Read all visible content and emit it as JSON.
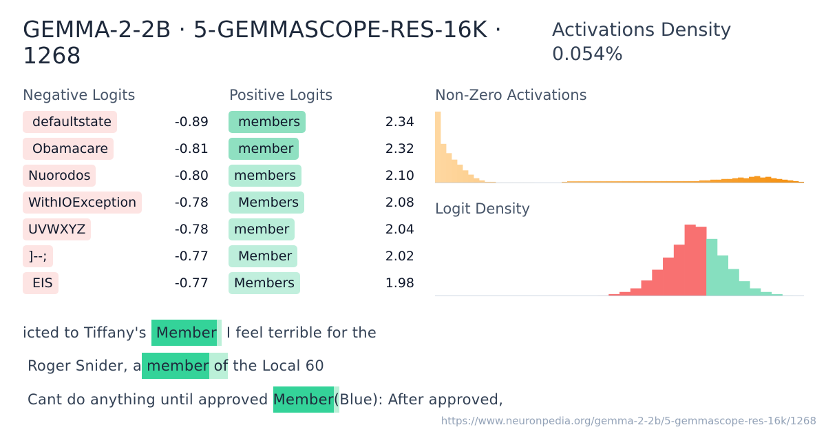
{
  "title": "GEMMA-2-2B · 5-GEMMASCOPE-RES-16K · 1268",
  "activations_density": {
    "label": "Activations Density",
    "value": "0.054%"
  },
  "negative_logits": {
    "label": "Negative Logits",
    "items": [
      {
        "token": " defaultstate",
        "value": "-0.89"
      },
      {
        "token": " Obamacare",
        "value": "-0.81"
      },
      {
        "token": "Nuorodos",
        "value": "-0.80"
      },
      {
        "token": "WithIOException",
        "value": "-0.78"
      },
      {
        "token": "UVWXYZ",
        "value": "-0.78"
      },
      {
        "token": "]--;",
        "value": "-0.77"
      },
      {
        "token": " EIS",
        "value": "-0.77"
      }
    ]
  },
  "positive_logits": {
    "label": "Positive Logits",
    "items": [
      {
        "token": " members",
        "value": "2.34",
        "color": "#8ee0c0"
      },
      {
        "token": " member",
        "value": "2.32",
        "color": "#8fe0c1"
      },
      {
        "token": "members",
        "value": "2.10",
        "color": "#b4ecd6"
      },
      {
        "token": " Members",
        "value": "2.08",
        "color": "#b6ecd7"
      },
      {
        "token": "member",
        "value": "2.04",
        "color": "#baeed9"
      },
      {
        "token": " Member",
        "value": "2.02",
        "color": "#bdeedb"
      },
      {
        "token": "Members",
        "value": "1.98",
        "color": "#c1efdd"
      }
    ]
  },
  "nonzero_activations": {
    "label": "Non-Zero Activations",
    "bars": [
      100,
      55,
      42,
      33,
      26,
      18,
      12,
      7,
      4,
      2,
      2,
      1,
      1,
      1,
      1,
      1,
      1,
      1,
      0.5,
      0.5,
      0.5,
      0.5,
      0.5,
      2,
      3,
      3,
      3,
      3,
      3,
      3,
      3,
      3,
      3,
      3,
      3,
      3,
      3,
      3,
      3,
      3,
      3,
      3,
      3,
      3,
      3,
      3,
      3,
      3,
      4,
      4,
      5,
      5,
      6,
      6,
      7,
      8,
      7,
      9,
      10,
      8,
      9,
      7,
      6,
      5,
      4,
      3,
      2
    ],
    "color_start": "#fed7a0",
    "color_end": "#f5900e"
  },
  "logit_density": {
    "label": "Logit Density",
    "bars": [
      0,
      0,
      0,
      0,
      0,
      0,
      0,
      0,
      0,
      0,
      0,
      0,
      0,
      0,
      0.5,
      1,
      3,
      6,
      11,
      22,
      37,
      54,
      72,
      100,
      97,
      80,
      57,
      38,
      21,
      11,
      6,
      3,
      1,
      0.5
    ],
    "split_index": 25,
    "neg_color": "#f87171",
    "pos_color": "#86dfbf"
  },
  "examples": [
    {
      "segments": [
        {
          "text": "icted to Tiffany's ",
          "style": "none"
        },
        {
          "text": " Member",
          "style": "strong"
        },
        {
          "text": " ",
          "style": "light"
        },
        {
          "text": " I feel terrible for the",
          "style": "none"
        }
      ]
    },
    {
      "segments": [
        {
          "text": " Roger Snider, a",
          "style": "none"
        },
        {
          "text": " member",
          "style": "strong"
        },
        {
          "text": " of",
          "style": "light"
        },
        {
          "text": " the Local 60",
          "style": "none"
        }
      ]
    },
    {
      "segments": [
        {
          "text": " Cant do anything until approved ",
          "style": "none"
        },
        {
          "text": "Member",
          "style": "strong"
        },
        {
          "text": "(",
          "style": "light"
        },
        {
          "text": "Blue): After approved,",
          "style": "none"
        }
      ]
    }
  ],
  "url": "https://www.neuronpedia.org/gemma-2-2b/5-gemmascope-res-16k/1268"
}
